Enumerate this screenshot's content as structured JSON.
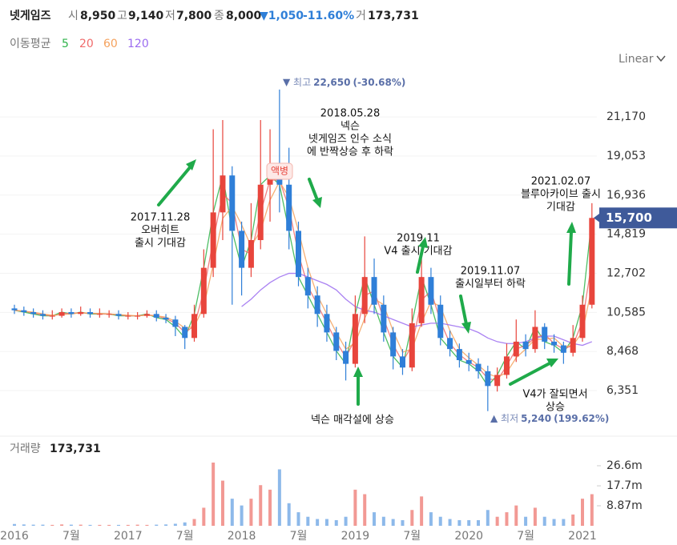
{
  "header": {
    "title": "넷게임즈",
    "open_label": "시",
    "open": "8,950",
    "high_label": "고",
    "high": "9,140",
    "low_label": "저",
    "low": "7,800",
    "close_label": "종",
    "close": "8,000",
    "change": "▼1,050",
    "change_pct": "-11.60%",
    "volume_label": "거",
    "volume": "173,731"
  },
  "chart_data": {
    "type": "candlestick",
    "categories": [
      "2016",
      null,
      null,
      null,
      null,
      null,
      "7월",
      null,
      null,
      null,
      null,
      null,
      "2017",
      null,
      null,
      null,
      null,
      null,
      "7월",
      null,
      null,
      null,
      null,
      null,
      "2018",
      null,
      null,
      null,
      null,
      null,
      "7월",
      null,
      null,
      null,
      null,
      null,
      "2019",
      null,
      null,
      null,
      null,
      null,
      "7월",
      null,
      null,
      null,
      null,
      null,
      "2020",
      null,
      null,
      null,
      null,
      null,
      "7월",
      null,
      null,
      null,
      null,
      null,
      "2021",
      null
    ],
    "candles": [
      [
        10800,
        11000,
        10500,
        10700
      ],
      [
        10700,
        10900,
        10400,
        10600
      ],
      [
        10600,
        10800,
        10300,
        10500
      ],
      [
        10500,
        10700,
        10200,
        10400
      ],
      [
        10400,
        10700,
        10200,
        10400
      ],
      [
        10400,
        10800,
        10300,
        10600
      ],
      [
        10600,
        10800,
        10300,
        10500
      ],
      [
        10500,
        10900,
        10400,
        10600
      ],
      [
        10600,
        10800,
        10300,
        10500
      ],
      [
        10500,
        10800,
        10300,
        10500
      ],
      [
        10500,
        10700,
        10300,
        10500
      ],
      [
        10500,
        10700,
        10200,
        10400
      ],
      [
        10400,
        10600,
        10200,
        10400
      ],
      [
        10400,
        10600,
        10200,
        10400
      ],
      [
        10400,
        10700,
        10300,
        10500
      ],
      [
        10500,
        10700,
        10100,
        10300
      ],
      [
        10300,
        10500,
        10000,
        10200
      ],
      [
        10200,
        10400,
        9300,
        9800
      ],
      [
        9800,
        9900,
        8600,
        9200
      ],
      [
        9200,
        11000,
        9000,
        10500
      ],
      [
        10500,
        14000,
        10300,
        13000
      ],
      [
        13000,
        20500,
        12500,
        16000
      ],
      [
        16000,
        21000,
        14500,
        18000
      ],
      [
        18000,
        18500,
        11000,
        15000
      ],
      [
        15000,
        15500,
        11500,
        13000
      ],
      [
        13000,
        16500,
        12500,
        14500
      ],
      [
        14500,
        21000,
        14000,
        17500
      ],
      [
        17500,
        20500,
        15500,
        18000
      ],
      [
        18000,
        22650,
        16000,
        17500
      ],
      [
        17500,
        19500,
        14000,
        15000
      ],
      [
        15000,
        15500,
        12000,
        12500
      ],
      [
        12500,
        13000,
        10800,
        11500
      ],
      [
        11500,
        12000,
        9800,
        10500
      ],
      [
        10500,
        11000,
        9000,
        9500
      ],
      [
        9500,
        9800,
        8000,
        8500
      ],
      [
        8500,
        9000,
        6900,
        7800
      ],
      [
        7800,
        11500,
        7600,
        10500
      ],
      [
        10500,
        14700,
        10000,
        12500
      ],
      [
        12500,
        13500,
        10500,
        11000
      ],
      [
        11000,
        11500,
        9000,
        9500
      ],
      [
        9500,
        9800,
        7500,
        8200
      ],
      [
        8200,
        8600,
        7200,
        7600
      ],
      [
        7600,
        10800,
        7400,
        10000
      ],
      [
        10000,
        13500,
        9800,
        12500
      ],
      [
        12500,
        13000,
        10500,
        11000
      ],
      [
        11000,
        11500,
        8800,
        9200
      ],
      [
        9200,
        9600,
        8200,
        8600
      ],
      [
        8600,
        8900,
        7600,
        8000
      ],
      [
        8000,
        8400,
        7400,
        7800
      ],
      [
        7800,
        8100,
        7000,
        7400
      ],
      [
        7400,
        7700,
        5240,
        6600
      ],
      [
        6600,
        7600,
        6300,
        7200
      ],
      [
        7200,
        8900,
        7000,
        8200
      ],
      [
        8200,
        10200,
        7900,
        9000
      ],
      [
        9000,
        9400,
        8200,
        8600
      ],
      [
        8600,
        10700,
        8400,
        9800
      ],
      [
        9800,
        10000,
        8600,
        9000
      ],
      [
        9000,
        9400,
        8400,
        8800
      ],
      [
        8800,
        9000,
        7800,
        8400
      ],
      [
        8400,
        9900,
        8200,
        9200
      ],
      [
        9200,
        11500,
        9000,
        11000
      ],
      [
        11000,
        16500,
        10800,
        15700
      ]
    ],
    "up_color": "#e8453c",
    "down_color": "#2f7fd8",
    "ylim": [
      4100,
      23600
    ],
    "yticks": [
      {
        "value": 6351,
        "label": "6,351"
      },
      {
        "value": 8468,
        "label": "8,468"
      },
      {
        "value": 10585,
        "label": "10,585"
      },
      {
        "value": 12702,
        "label": "12,702"
      },
      {
        "value": 14819,
        "label": "14,819"
      },
      {
        "value": 16936,
        "label": "16,936"
      },
      {
        "value": 19053,
        "label": "19,053"
      },
      {
        "value": 21170,
        "label": "21,170"
      }
    ],
    "grid": true,
    "current_price": {
      "value": 15700,
      "label": "15,700"
    },
    "high_marker": {
      "name": "최고",
      "value": 22650,
      "label": "22,650",
      "change": "(-30.68%)"
    },
    "low_marker": {
      "name": "최저",
      "value": 5240,
      "label": "5,240",
      "change": "(199.62%)"
    },
    "event_marker": "액병",
    "scale_mode": "Linear",
    "moving_averages": {
      "label": "이동평균",
      "series": [
        {
          "name": "5",
          "color": "#2fb34a",
          "values": [
            10700,
            10600,
            10500,
            10400,
            10400,
            10600,
            10500,
            10600,
            10500,
            10500,
            10500,
            10400,
            10400,
            10400,
            10500,
            10300,
            10200,
            9800,
            9200,
            10500,
            13000,
            16000,
            18000,
            15000,
            13000,
            14500,
            17500,
            18000,
            17500,
            15000,
            12500,
            11500,
            10500,
            9500,
            8500,
            7800,
            10500,
            12500,
            11000,
            9500,
            8200,
            7600,
            10000,
            12500,
            11000,
            9200,
            8600,
            8000,
            7800,
            7400,
            6600,
            7200,
            8200,
            9000,
            8600,
            9800,
            9000,
            8800,
            8400,
            9200,
            11000,
            15700
          ]
        },
        {
          "name": "20",
          "color": "#f06b6b",
          "values": [
            10700,
            10650,
            10550,
            10450,
            10400,
            10500,
            10550,
            10550,
            10550,
            10500,
            10500,
            10450,
            10400,
            10400,
            10450,
            10400,
            10250,
            10000,
            9500,
            9850,
            11750,
            14500,
            17000,
            16500,
            14000,
            13750,
            16000,
            17750,
            17750,
            16250,
            13750,
            12000,
            11000,
            10000,
            9000,
            8150,
            9150,
            11500,
            11750,
            10250,
            8850,
            7900,
            8800,
            11250,
            11750,
            10100,
            8900,
            8300,
            7900,
            7600,
            7000,
            6900,
            7700,
            8600,
            8800,
            9200,
            9400,
            8900,
            8600,
            8800,
            10100,
            13350
          ]
        },
        {
          "name": "60",
          "color": "#f5a25d",
          "values": [
            10700,
            10650,
            10600,
            10500,
            10430,
            10470,
            10500,
            10570,
            10530,
            10530,
            10500,
            10470,
            10430,
            10400,
            10430,
            10400,
            10330,
            10100,
            9730,
            9830,
            10900,
            13170,
            15670,
            16330,
            15330,
            14170,
            15000,
            16670,
            17670,
            16830,
            15000,
            13000,
            11500,
            10500,
            9500,
            8600,
            8930,
            10270,
            11330,
            11000,
            9570,
            8430,
            8600,
            10030,
            11170,
            10900,
            9600,
            8600,
            8130,
            7730,
            7270,
            7070,
            7330,
            8130,
            8600,
            9130,
            9130,
            9200,
            8730,
            8800,
            9530,
            11970
          ]
        },
        {
          "name": "120",
          "color": "#9b6cf0",
          "values": [
            null,
            null,
            null,
            null,
            null,
            null,
            null,
            null,
            null,
            null,
            null,
            null,
            null,
            null,
            null,
            null,
            null,
            null,
            null,
            null,
            null,
            null,
            null,
            null,
            10900,
            11300,
            11800,
            12200,
            12500,
            12700,
            12700,
            12500,
            12300,
            12100,
            11800,
            11300,
            10900,
            10700,
            10600,
            10400,
            10200,
            10000,
            9800,
            9900,
            10000,
            10000,
            9900,
            9800,
            9700,
            9500,
            9200,
            9000,
            8900,
            8900,
            9000,
            9200,
            9300,
            9300,
            9100,
            8900,
            8800,
            9000
          ]
        }
      ]
    },
    "volume": {
      "label": "거래량",
      "current": "173,731",
      "ylim": [
        0,
        39700000
      ],
      "yticks": [
        {
          "value": 8870000,
          "label": "8.87m"
        },
        {
          "value": 17700000,
          "label": "17.7m"
        },
        {
          "value": 26600000,
          "label": "26.6m"
        }
      ],
      "values": [
        800000,
        600000,
        500000,
        500000,
        400000,
        600000,
        500000,
        500000,
        400000,
        400000,
        400000,
        400000,
        400000,
        500000,
        400000,
        500000,
        600000,
        900000,
        1500000,
        3000000,
        8000000,
        28000000,
        20000000,
        12000000,
        9000000,
        12000000,
        18000000,
        16000000,
        25000000,
        10000000,
        6000000,
        4000000,
        3000000,
        3000000,
        2500000,
        4000000,
        16000000,
        14000000,
        6000000,
        4000000,
        3000000,
        2500000,
        7000000,
        13000000,
        6000000,
        4000000,
        3000000,
        2500000,
        2500000,
        2500000,
        7000000,
        4000000,
        6000000,
        9000000,
        4000000,
        8000000,
        4000000,
        3000000,
        3000000,
        5000000,
        12000000,
        14000000
      ]
    },
    "annotations": [
      {
        "lines": [
          "2017.11.28",
          "오버히트",
          "출시 기대감"
        ]
      },
      {
        "lines": [
          "2018.05.28",
          "넥슨",
          "넷게임즈 인수 소식",
          "에 반짝상승 후 하락"
        ]
      },
      {
        "lines": [
          "넥슨 매각설에 상승"
        ]
      },
      {
        "lines": [
          "2019.11",
          "V4 출시 기대감"
        ]
      },
      {
        "lines": [
          "2019.11.07",
          "출시일부터 하락"
        ]
      },
      {
        "lines": [
          "V4가 잘되면서",
          "상승"
        ]
      },
      {
        "lines": [
          "2021.02.07",
          "블루아카이브 출시",
          "기대감"
        ]
      }
    ]
  }
}
